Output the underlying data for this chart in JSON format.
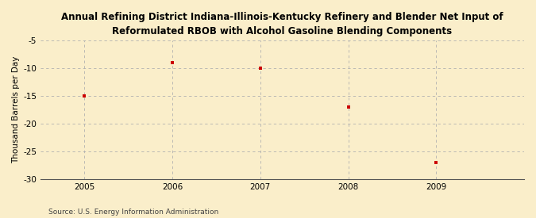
{
  "title": "Annual Refining District Indiana-Illinois-Kentucky Refinery and Blender Net Input of\nReformulated RBOB with Alcohol Gasoline Blending Components",
  "ylabel": "Thousand Barrels per Day",
  "source": "Source: U.S. Energy Information Administration",
  "x_values": [
    2005,
    2006,
    2007,
    2008,
    2009
  ],
  "y_values": [
    -15,
    -9,
    -10,
    -17,
    -27
  ],
  "ylim": [
    -30,
    -5
  ],
  "xlim": [
    2004.5,
    2010.0
  ],
  "yticks": [
    -5,
    -10,
    -15,
    -20,
    -25,
    -30
  ],
  "xticks": [
    2005,
    2006,
    2007,
    2008,
    2009
  ],
  "marker_color": "#cc0000",
  "marker": "s",
  "marker_size": 3,
  "grid_color": "#b0b0b0",
  "bg_color": "#faeeca",
  "title_fontsize": 8.5,
  "ylabel_fontsize": 7.5,
  "tick_fontsize": 7.5,
  "source_fontsize": 6.5
}
